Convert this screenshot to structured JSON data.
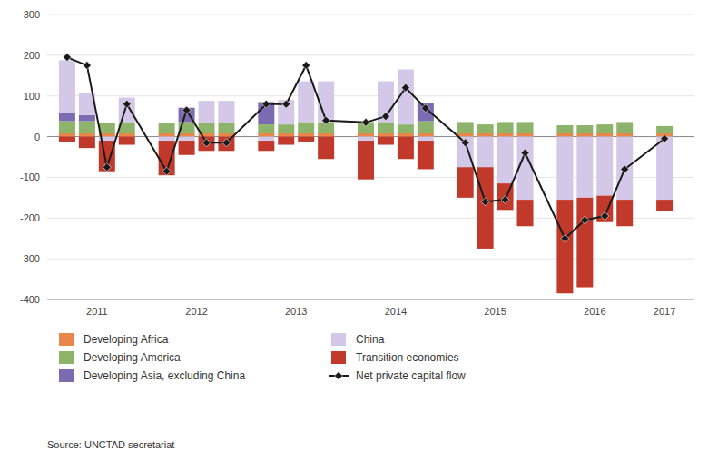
{
  "chart_data": {
    "type": "bar",
    "stacked": true,
    "categories": [
      "2011",
      null,
      null,
      null,
      "2012",
      null,
      null,
      null,
      "2013",
      null,
      null,
      null,
      "2014",
      null,
      null,
      null,
      "2015",
      null,
      null,
      null,
      "2016",
      null,
      null,
      null,
      "2017"
    ],
    "series": [
      {
        "name": "Developing Africa",
        "color": "#E8874A",
        "values": [
          8,
          8,
          8,
          8,
          8,
          8,
          8,
          8,
          8,
          8,
          8,
          8,
          8,
          8,
          8,
          8,
          8,
          8,
          8,
          8,
          8,
          8,
          8,
          8,
          8
        ]
      },
      {
        "name": "Developing America",
        "color": "#8DB46A",
        "values": [
          30,
          30,
          25,
          28,
          25,
          28,
          25,
          25,
          22,
          22,
          28,
          28,
          28,
          28,
          22,
          30,
          28,
          22,
          28,
          28,
          20,
          20,
          22,
          28,
          18
        ]
      },
      {
        "name": "Developing Asia, excluding China",
        "color": "#7B6BB0",
        "values": [
          20,
          15,
          0,
          0,
          0,
          35,
          0,
          0,
          55,
          0,
          0,
          0,
          0,
          0,
          0,
          45,
          0,
          0,
          0,
          0,
          0,
          0,
          0,
          0,
          0
        ]
      },
      {
        "name": "China",
        "color": "#D4C8E8",
        "values": [
          130,
          55,
          -10,
          60,
          -10,
          -10,
          55,
          55,
          -10,
          60,
          100,
          100,
          -10,
          100,
          135,
          -10,
          -75,
          -75,
          -115,
          -155,
          -155,
          -150,
          -145,
          -155,
          -155
        ]
      },
      {
        "name": "Transition economies",
        "color": "#C0392B",
        "values": [
          -12,
          -28,
          -75,
          -20,
          -85,
          -35,
          -35,
          -35,
          -25,
          -20,
          -12,
          -55,
          -95,
          -20,
          -55,
          -70,
          -75,
          -200,
          -65,
          -65,
          -230,
          -220,
          -65,
          -65,
          -28
        ]
      },
      {
        "name": "Net private capital flow",
        "type": "line",
        "color": "#1a1a1a",
        "marker": "diamond",
        "values": [
          195,
          175,
          -75,
          80,
          -85,
          65,
          -15,
          -15,
          80,
          80,
          175,
          40,
          35,
          50,
          120,
          70,
          -15,
          -160,
          -155,
          -40,
          -250,
          -205,
          -195,
          -80,
          -5
        ]
      }
    ],
    "ylim": [
      -400,
      300
    ],
    "yticks": [
      -400,
      -300,
      -200,
      -100,
      0,
      100,
      200,
      300
    ],
    "grid": true,
    "legend": "bottom",
    "annotations": [
      "Source: UNCTAD secretariat"
    ]
  }
}
